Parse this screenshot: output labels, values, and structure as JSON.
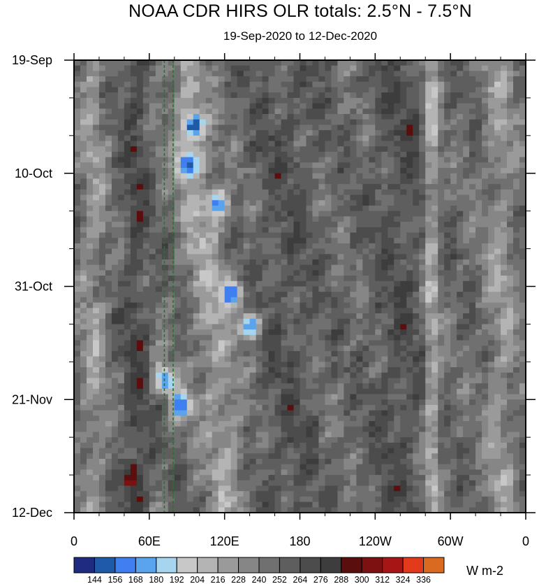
{
  "chart_data": {
    "type": "heatmap",
    "title": "NOAA CDR HIRS OLR totals: 2.5°N - 7.5°N",
    "subtitle": "19-Sep-2020 to 12-Dec-2020",
    "xlabel": "",
    "ylabel": "",
    "x_ticks": [
      {
        "lon": 0,
        "label": "0"
      },
      {
        "lon": 60,
        "label": "60E"
      },
      {
        "lon": 120,
        "label": "120E"
      },
      {
        "lon": 180,
        "label": "180"
      },
      {
        "lon": 240,
        "label": "120W"
      },
      {
        "lon": 300,
        "label": "60W"
      },
      {
        "lon": 360,
        "label": "0"
      }
    ],
    "xlim": [
      0,
      360
    ],
    "y_ticks": [
      {
        "date": "2020-09-19",
        "label": "19-Sep"
      },
      {
        "date": "2020-10-10",
        "label": "10-Oct"
      },
      {
        "date": "2020-10-31",
        "label": "31-Oct"
      },
      {
        "date": "2020-11-21",
        "label": "21-Nov"
      },
      {
        "date": "2020-12-12",
        "label": "12-Dec"
      }
    ],
    "ylim": [
      "2020-09-19",
      "2020-12-12"
    ],
    "y_direction": "time increases downward",
    "reference_lines": {
      "lon": [
        72,
        79
      ],
      "style": "dashed",
      "color": "#1f7a1f"
    },
    "colorbar": {
      "units": "W m-2",
      "levels": [
        144,
        156,
        168,
        180,
        192,
        204,
        216,
        228,
        240,
        252,
        264,
        276,
        288,
        300,
        312,
        324,
        336
      ],
      "colors": [
        "#1e2b80",
        "#1f5aa8",
        "#3f7ff0",
        "#5aa4ee",
        "#a6d6ef",
        "#c8c8c8",
        "#b4b4b4",
        "#9a9a9a",
        "#868686",
        "#707070",
        "#5e5e5e",
        "#4c4c4c",
        "#3d3d3d",
        "#5a0e0e",
        "#7d1010",
        "#a81515",
        "#e23a1a",
        "#d96a20"
      ]
    },
    "convective_features": [
      {
        "lon": 90,
        "date": "2020-10-08",
        "olr": 160
      },
      {
        "lon": 95,
        "date": "2020-10-01",
        "olr": 170
      },
      {
        "lon": 115,
        "date": "2020-10-16",
        "olr": 165
      },
      {
        "lon": 125,
        "date": "2020-11-01",
        "olr": 165
      },
      {
        "lon": 140,
        "date": "2020-11-07",
        "olr": 160
      },
      {
        "lon": 72,
        "date": "2020-11-17",
        "olr": 165
      },
      {
        "lon": 85,
        "date": "2020-11-22",
        "olr": 160
      },
      {
        "lon": 45,
        "date": "2020-12-06",
        "olr": 305
      }
    ]
  }
}
